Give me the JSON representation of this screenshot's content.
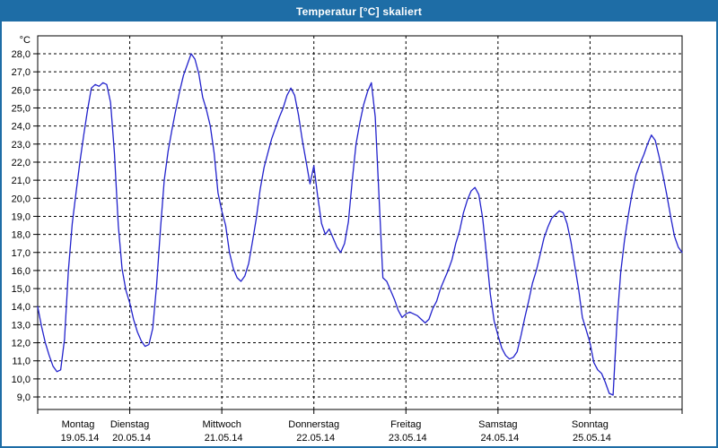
{
  "window": {
    "title": "Temperatur [°C] skaliert"
  },
  "colors": {
    "frame_blue": "#1e6da6",
    "series_line": "#2222cc",
    "grid": "#000000",
    "background": "#ffffff",
    "label_text": "#000000"
  },
  "chart_data": {
    "type": "line",
    "title": "Temperatur [°C] skaliert",
    "grid": "dashed",
    "legend": "none",
    "y_axis": {
      "unit_label": "°C",
      "min": 9.0,
      "max": 28.0,
      "tick_step": 1.0,
      "ylim_drawn": [
        8.3,
        29.0
      ],
      "tick_labels": [
        "28,0",
        "27,0",
        "26,0",
        "25,0",
        "24,0",
        "23,0",
        "22,0",
        "21,0",
        "20,0",
        "19,0",
        "18,0",
        "17,0",
        "16,0",
        "15,0",
        "14,0",
        "13,0",
        "12,0",
        "11,0",
        "10,0",
        "9,0"
      ]
    },
    "x_axis": {
      "total_hours": 168,
      "day_tick_hours": [
        0,
        24,
        48,
        72,
        96,
        120,
        144
      ],
      "days": [
        {
          "day": "Montag",
          "date": "19.05.14"
        },
        {
          "day": "Dienstag",
          "date": "20.05.14"
        },
        {
          "day": "Mittwoch",
          "date": "21.05.14"
        },
        {
          "day": "Donnerstag",
          "date": "22.05.14"
        },
        {
          "day": "Freitag",
          "date": "23.05.14"
        },
        {
          "day": "Samstag",
          "date": "24.05.14"
        },
        {
          "day": "Sonntag",
          "date": "25.05.14"
        }
      ]
    },
    "series": [
      {
        "name": "Temperatur",
        "color": "#2222cc",
        "interval_hours": 1,
        "start_hour": 0,
        "values": [
          14.0,
          12.9,
          12.0,
          11.3,
          10.7,
          10.4,
          10.5,
          12.2,
          16.0,
          18.6,
          20.3,
          22.0,
          23.5,
          24.9,
          26.1,
          26.3,
          26.2,
          26.4,
          26.3,
          25.3,
          22.5,
          18.5,
          16.1,
          14.9,
          14.2,
          13.3,
          12.6,
          12.1,
          11.8,
          11.9,
          12.8,
          15.2,
          18.3,
          21.0,
          22.6,
          23.8,
          24.9,
          25.9,
          26.8,
          27.4,
          28.0,
          27.7,
          26.9,
          25.6,
          24.9,
          24.0,
          22.5,
          20.3,
          19.3,
          18.5,
          17.0,
          16.1,
          15.6,
          15.4,
          15.7,
          16.4,
          17.6,
          18.9,
          20.5,
          21.7,
          22.5,
          23.3,
          23.9,
          24.5,
          25.0,
          25.7,
          26.1,
          25.7,
          24.6,
          23.2,
          22.0,
          20.8,
          21.8,
          20.1,
          18.6,
          18.0,
          18.3,
          17.8,
          17.3,
          17.0,
          17.5,
          18.7,
          21.0,
          23.0,
          24.2,
          25.2,
          25.9,
          26.4,
          24.5,
          20.0,
          15.6,
          15.4,
          14.9,
          14.4,
          13.8,
          13.4,
          13.6,
          13.7,
          13.6,
          13.5,
          13.3,
          13.1,
          13.3,
          13.9,
          14.3,
          15.0,
          15.5,
          16.0,
          16.6,
          17.5,
          18.2,
          19.2,
          19.9,
          20.4,
          20.6,
          20.2,
          18.9,
          16.9,
          14.7,
          13.2,
          12.4,
          11.7,
          11.3,
          11.1,
          11.2,
          11.5,
          12.4,
          13.4,
          14.3,
          15.3,
          16.0,
          16.9,
          17.8,
          18.4,
          18.9,
          19.1,
          19.3,
          19.2,
          18.6,
          17.6,
          16.3,
          15.0,
          13.4,
          12.7,
          12.0,
          10.9,
          10.5,
          10.3,
          9.8,
          9.2,
          9.1,
          13.0,
          15.9,
          17.7,
          19.1,
          20.3,
          21.3,
          21.9,
          22.4,
          23.0,
          23.5,
          23.2,
          22.3,
          21.3,
          20.2,
          19.0,
          17.9,
          17.3,
          17.0
        ]
      }
    ]
  }
}
